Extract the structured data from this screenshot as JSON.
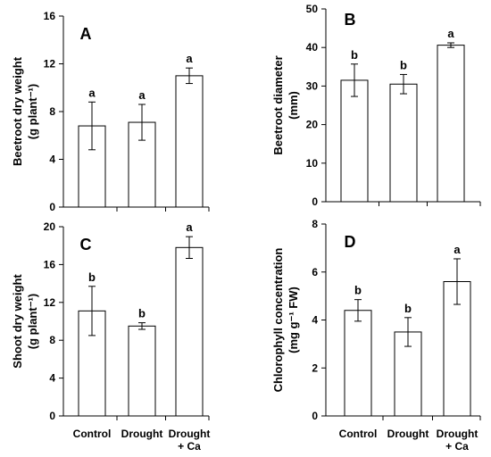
{
  "chart_data": [
    {
      "panel": "A",
      "type": "bar",
      "categories": [
        "Control",
        "Drought",
        "Drought + Ca"
      ],
      "values": [
        6.8,
        7.1,
        11.0
      ],
      "errors": [
        2.0,
        1.5,
        0.65
      ],
      "letters": [
        "a",
        "a",
        "a"
      ],
      "ylabel_lines": [
        "Beetroot dry weight",
        "(g plant⁻¹)"
      ],
      "ylim": [
        0,
        16
      ],
      "yticks": [
        "0",
        "4",
        "8",
        "12",
        "16"
      ],
      "show_xlabels": false
    },
    {
      "panel": "B",
      "type": "bar",
      "categories": [
        "Control",
        "Drought",
        "Drought + Ca"
      ],
      "values": [
        31.5,
        30.5,
        40.6
      ],
      "errors": [
        4.2,
        2.5,
        0.6
      ],
      "letters": [
        "b",
        "b",
        "a"
      ],
      "ylabel_lines": [
        "Beetroot diameter",
        "(mm)"
      ],
      "ylim": [
        0,
        50
      ],
      "yticks": [
        "0",
        "10",
        "20",
        "30",
        "40",
        "50"
      ],
      "show_xlabels": false
    },
    {
      "panel": "C",
      "type": "bar",
      "categories": [
        "Control",
        "Drought",
        "Drought + Ca"
      ],
      "values": [
        11.1,
        9.5,
        17.8
      ],
      "errors": [
        2.6,
        0.35,
        1.15
      ],
      "letters": [
        "b",
        "b",
        "a"
      ],
      "ylabel_lines": [
        "Shoot dry weight",
        "(g plant⁻¹)"
      ],
      "ylim": [
        0,
        20
      ],
      "yticks": [
        "0",
        "4",
        "8",
        "12",
        "16",
        "20"
      ],
      "show_xlabels": true
    },
    {
      "panel": "D",
      "type": "bar",
      "categories": [
        "Control",
        "Drought",
        "Drought + Ca"
      ],
      "values": [
        4.4,
        3.5,
        5.6
      ],
      "errors": [
        0.45,
        0.6,
        0.95
      ],
      "letters": [
        "b",
        "b",
        "a"
      ],
      "ylabel_lines": [
        "Chlorophyll concentration",
        "(mg g⁻¹ FW)"
      ],
      "ylim": [
        0,
        8
      ],
      "yticks": [
        "0",
        "2",
        "4",
        "6",
        "8"
      ],
      "show_xlabels": true
    }
  ]
}
